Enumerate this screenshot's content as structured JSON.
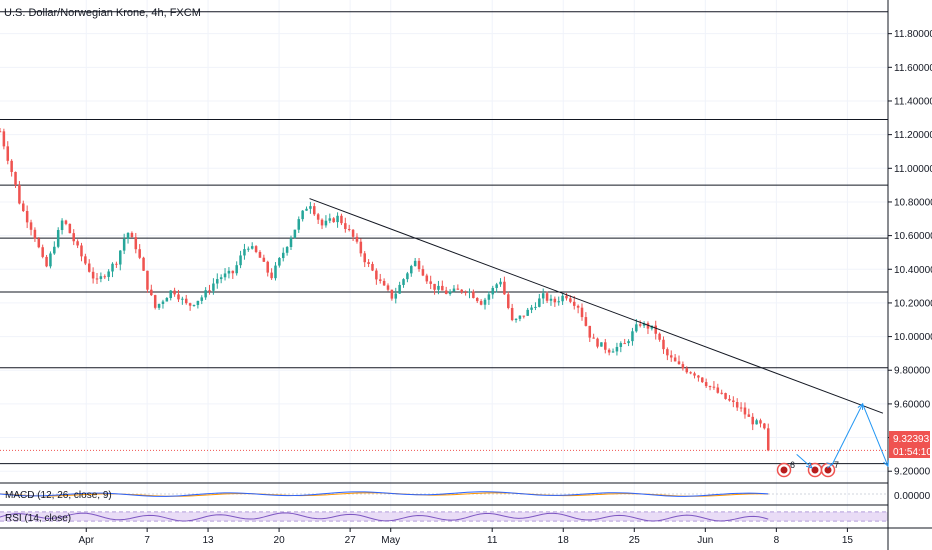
{
  "chart_data": {
    "type": "candlestick",
    "title": "U.S. Dollar/Norwegian Krone, 4h, FXCM",
    "y_ticks": [
      "11.80000",
      "11.60000",
      "11.40000",
      "11.20000",
      "11.00000",
      "10.80000",
      "10.60000",
      "10.40000",
      "10.20000",
      "10.00000",
      "9.80000",
      "9.60000",
      "9.40000",
      "9.20000"
    ],
    "y_tick_values": [
      11.8,
      11.6,
      11.4,
      11.2,
      11.0,
      10.8,
      10.6,
      10.4,
      10.2,
      10.0,
      9.8,
      9.6,
      9.4,
      9.2
    ],
    "ylim": [
      9.13,
      12.0
    ],
    "x_ticks": [
      "Apr",
      "7",
      "13",
      "20",
      "27",
      "May",
      "11",
      "18",
      "25",
      "Jun",
      "8",
      "15"
    ],
    "x_tick_days": [
      1,
      7,
      13,
      20,
      27,
      31,
      41,
      48,
      55,
      62,
      69,
      76
    ],
    "xlim": [
      -7.5,
      80.0
    ],
    "horizontal_levels": [
      11.93,
      11.29,
      10.9,
      10.585,
      10.265,
      9.815,
      9.245
    ],
    "trendline": {
      "start": [
        23.0,
        10.82
      ],
      "end": [
        79.5,
        9.545
      ]
    },
    "projection_path": [
      [
        71.0,
        9.3
      ],
      [
        72.5,
        9.22
      ],
      [
        74.5,
        9.24
      ],
      [
        77.5,
        9.6
      ],
      [
        80.0,
        9.23
      ]
    ],
    "last_price": {
      "value": 9.32393,
      "label": "9.32393",
      "countdown": "01:54:10",
      "color": "#ef5350"
    },
    "anchors": [
      [
        -7.5,
        11.22
      ],
      [
        -6.2,
        10.95
      ],
      [
        -5.5,
        10.78
      ],
      [
        -4.2,
        10.62
      ],
      [
        -3.0,
        10.4
      ],
      [
        -1.3,
        10.7
      ],
      [
        0.5,
        10.48
      ],
      [
        2.0,
        10.32
      ],
      [
        4.0,
        10.45
      ],
      [
        5.0,
        10.63
      ],
      [
        6.0,
        10.52
      ],
      [
        7.0,
        10.3
      ],
      [
        7.8,
        10.17
      ],
      [
        9.5,
        10.28
      ],
      [
        11.0,
        10.18
      ],
      [
        12.5,
        10.24
      ],
      [
        14.0,
        10.35
      ],
      [
        15.5,
        10.38
      ],
      [
        16.8,
        10.55
      ],
      [
        18.0,
        10.48
      ],
      [
        19.2,
        10.35
      ],
      [
        20.8,
        10.55
      ],
      [
        22.2,
        10.72
      ],
      [
        23.0,
        10.8
      ],
      [
        24.2,
        10.66
      ],
      [
        25.8,
        10.71
      ],
      [
        27.2,
        10.6
      ],
      [
        28.5,
        10.45
      ],
      [
        30.2,
        10.3
      ],
      [
        31.2,
        10.23
      ],
      [
        32.8,
        10.4
      ],
      [
        33.5,
        10.45
      ],
      [
        35.0,
        10.3
      ],
      [
        36.5,
        10.26
      ],
      [
        38.5,
        10.28
      ],
      [
        40.0,
        10.2
      ],
      [
        41.8,
        10.34
      ],
      [
        43.0,
        10.08
      ],
      [
        44.5,
        10.15
      ],
      [
        46.0,
        10.24
      ],
      [
        47.0,
        10.2
      ],
      [
        48.2,
        10.25
      ],
      [
        49.5,
        10.18
      ],
      [
        50.8,
        9.98
      ],
      [
        52.5,
        9.92
      ],
      [
        54.0,
        9.95
      ],
      [
        55.5,
        10.08
      ],
      [
        57.0,
        10.04
      ],
      [
        58.0,
        9.9
      ],
      [
        59.5,
        9.82
      ],
      [
        61.0,
        9.78
      ],
      [
        62.5,
        9.7
      ],
      [
        64.0,
        9.63
      ],
      [
        65.5,
        9.57
      ],
      [
        66.5,
        9.5
      ],
      [
        67.5,
        9.47
      ],
      [
        68.2,
        9.4
      ]
    ],
    "candle_count": 199,
    "up_color": "#26a69a",
    "down_color": "#ef5350",
    "macd": {
      "label": "MACD (12, 26, close, 9)",
      "axis_tick": "0.00000",
      "macd_color": "#2962ff",
      "signal_color": "#ff9800"
    },
    "rsi": {
      "label": "RSI (14, close)",
      "line_color": "#7e57c2",
      "band_color": "#e9dcf6",
      "upper": 70,
      "lower": 30
    },
    "events": [
      {
        "count": "6"
      },
      {
        "count": "7"
      }
    ]
  }
}
